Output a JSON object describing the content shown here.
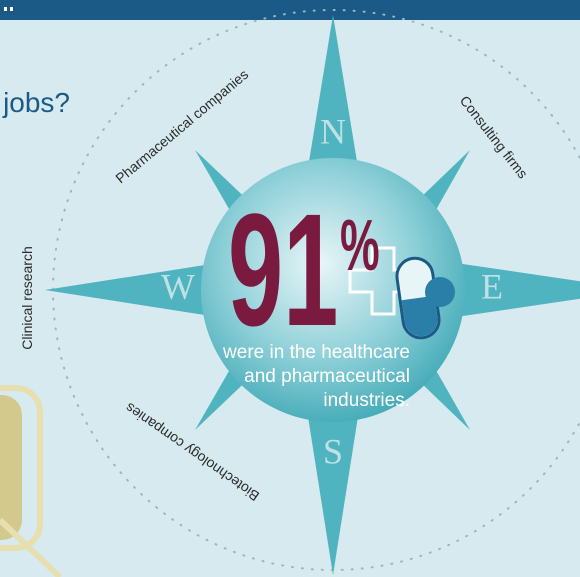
{
  "heading": "jobs?",
  "compass": {
    "north": "N",
    "west": "W",
    "east": "E",
    "south": "S"
  },
  "sectors": [
    "Pharmaceutical companies",
    "Consulting firms",
    "Clinical research",
    "Biotechnology companies"
  ],
  "stat": {
    "number": "91",
    "symbol": "%",
    "caption": [
      "were in the healthcare",
      "and pharmaceutical",
      "industries."
    ]
  }
}
